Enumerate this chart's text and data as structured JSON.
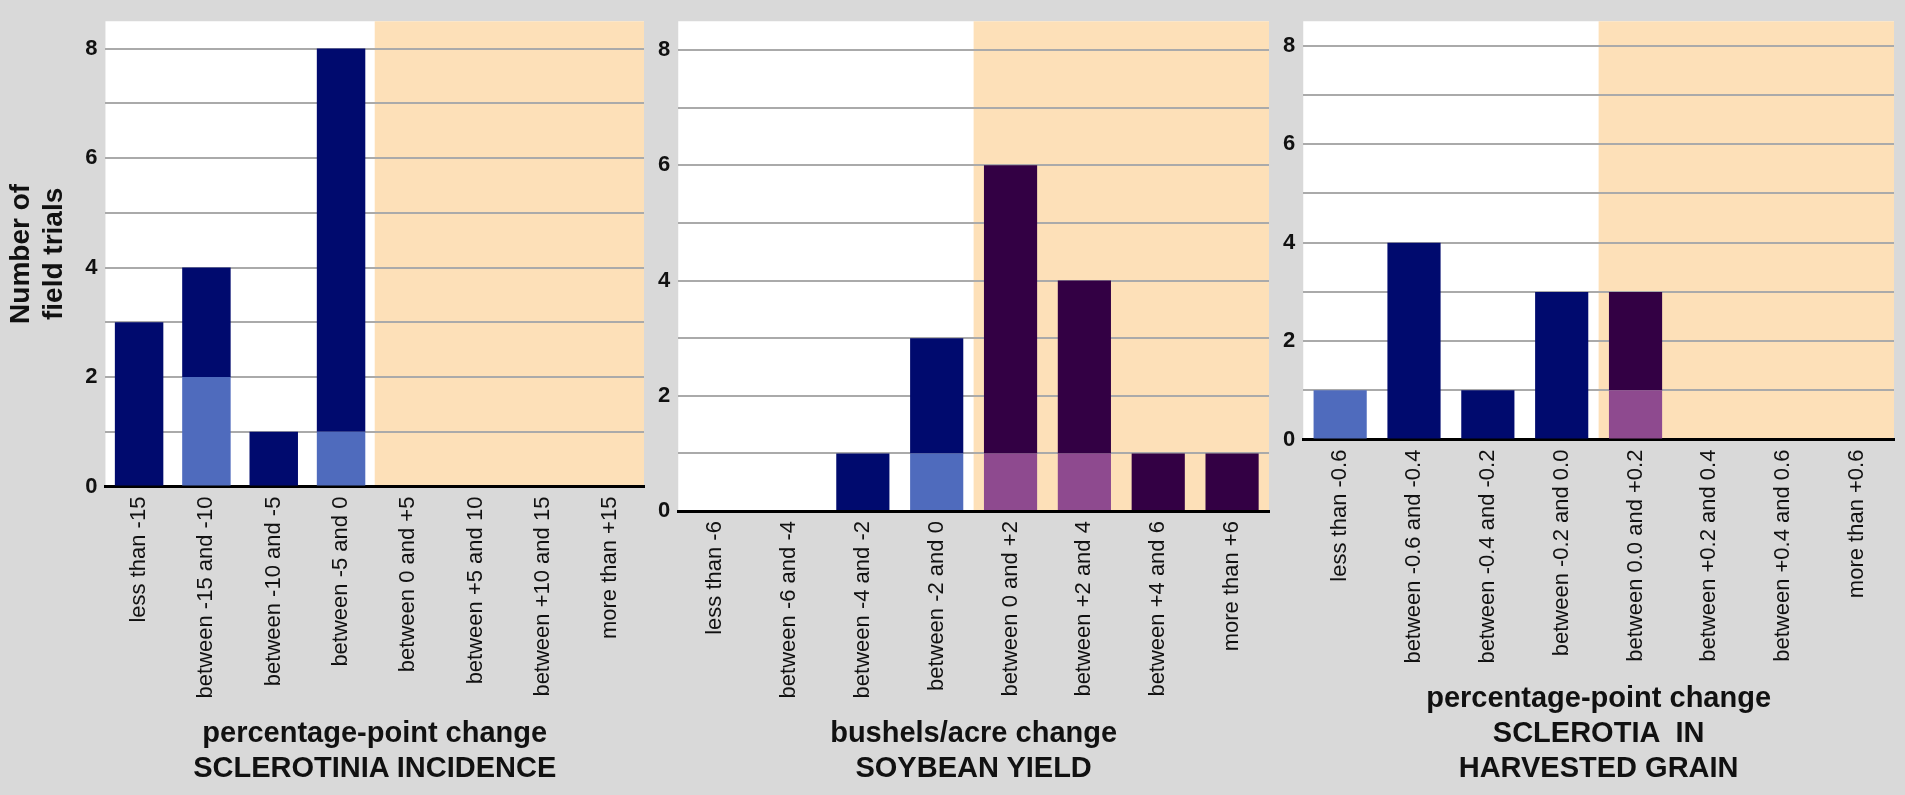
{
  "chart_data": [
    {
      "type": "bar",
      "stacked": true,
      "grid": "y",
      "ylabel": "Number of\nfield trials",
      "xlabel": "percentage-point change\nSCLEROTINIA INCIDENCE",
      "categories": [
        "less than -15",
        "between -15 and -10",
        "between -10 and -5",
        "between -5 and 0",
        "between 0 and +5",
        "between +5 and 10",
        "between +10 and 15",
        "more than +15"
      ],
      "series": [
        {
          "values": [
            0,
            2,
            0,
            1,
            0,
            0,
            0,
            0
          ],
          "colors": [
            "#4f6bbd",
            "#4f6bbd",
            "#4f6bbd",
            "#4f6bbd",
            "#4f6bbd",
            "#4f6bbd",
            "#4f6bbd",
            "#4f6bbd"
          ]
        },
        {
          "values": [
            3,
            2,
            1,
            7,
            0,
            0,
            0,
            0
          ],
          "colors": [
            "#000a6e",
            "#000a6e",
            "#000a6e",
            "#000a6e",
            "#000a6e",
            "#000a6e",
            "#000a6e",
            "#000a6e"
          ]
        }
      ],
      "ylim": [
        0,
        8.5
      ],
      "yticks": [
        0,
        {
          "value": 1,
          "label": null
        },
        2,
        {
          "value": 3,
          "label": null
        },
        4,
        {
          "value": 5,
          "label": null
        },
        6,
        {
          "value": 7,
          "label": null
        },
        8
      ],
      "bands": [
        {
          "axis": "x",
          "from": "between 0 and +5",
          "to": "more than +15",
          "color": "#fde0b8"
        }
      ]
    },
    {
      "type": "bar",
      "stacked": true,
      "grid": "y",
      "xlabel": "bushels/acre change\nSOYBEAN YIELD",
      "categories": [
        "less than -6",
        "between -6 and -4",
        "between -4 and -2",
        "between -2 and 0",
        "between 0 and +2",
        "between +2 and 4",
        "between +4 and 6",
        "more than +6"
      ],
      "series": [
        {
          "values": [
            0,
            0,
            0,
            1,
            1,
            1,
            0,
            0
          ],
          "colors": [
            "#4f6bbd",
            "#4f6bbd",
            "#4f6bbd",
            "#4f6bbd",
            "#8e4a8f",
            "#8e4a8f",
            "#8e4a8f",
            "#8e4a8f"
          ]
        },
        {
          "values": [
            0,
            0,
            1,
            2,
            5,
            3,
            1,
            1
          ],
          "colors": [
            "#000a6e",
            "#000a6e",
            "#000a6e",
            "#000a6e",
            "#330044",
            "#330044",
            "#330044",
            "#330044"
          ]
        }
      ],
      "ylim": [
        0,
        8.5
      ],
      "yticks": [
        0,
        {
          "value": 1,
          "label": null
        },
        2,
        {
          "value": 3,
          "label": null
        },
        4,
        {
          "value": 5,
          "label": null
        },
        6,
        {
          "value": 7,
          "label": null
        },
        8
      ],
      "bands": [
        {
          "axis": "x",
          "from": "between 0 and +2",
          "to": "more than +6",
          "color": "#fde0b8"
        }
      ]
    },
    {
      "type": "bar",
      "stacked": true,
      "grid": "y",
      "xlabel": "percentage-point change\nSCLEROTIA  IN\nHARVESTED GRAIN",
      "categories": [
        "less than -0.6",
        "between -0.6 and -0.4",
        "between -0.4 and -0.2",
        "between -0.2 and 0.0",
        "between 0.0 and +0.2",
        "between +0.2 and 0.4",
        "between +0.4 and 0.6",
        "more than +0.6"
      ],
      "series": [
        {
          "values": [
            1,
            0,
            0,
            0,
            1,
            0,
            0,
            0
          ],
          "colors": [
            "#4f6bbd",
            "#4f6bbd",
            "#4f6bbd",
            "#4f6bbd",
            "#8e4a8f",
            "#8e4a8f",
            "#8e4a8f",
            "#8e4a8f"
          ]
        },
        {
          "values": [
            0,
            4,
            1,
            3,
            2,
            0,
            0,
            0
          ],
          "colors": [
            "#000a6e",
            "#000a6e",
            "#000a6e",
            "#000a6e",
            "#330044",
            "#330044",
            "#330044",
            "#330044"
          ]
        }
      ],
      "ylim": [
        0,
        8.5
      ],
      "yticks": [
        0,
        {
          "value": 1,
          "label": null
        },
        2,
        {
          "value": 3,
          "label": null
        },
        4,
        {
          "value": 5,
          "label": null
        },
        6,
        {
          "value": 7,
          "label": null
        },
        8
      ],
      "bands": [
        {
          "axis": "x",
          "from": "between 0.0 and +0.2",
          "to": "more than +0.6",
          "color": "#fde0b8"
        }
      ]
    }
  ]
}
